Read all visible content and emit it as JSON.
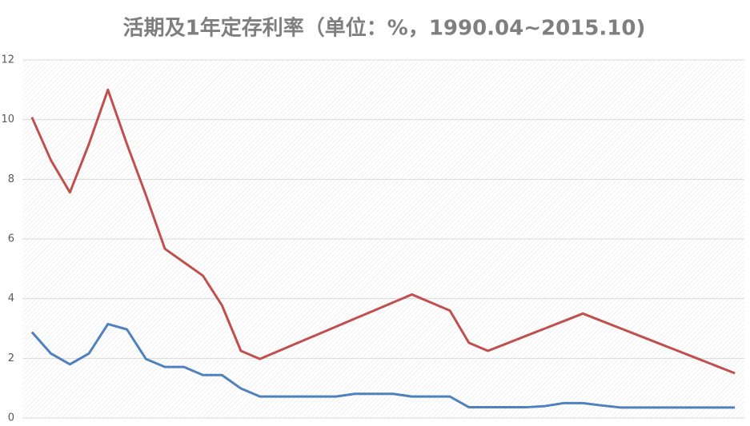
{
  "chart_data": {
    "type": "line",
    "title": "活期及1年定存利率（单位：%，1990.04~2015.10)",
    "categories": [
      null,
      null,
      null,
      null,
      null,
      null,
      null,
      null,
      null,
      null,
      null,
      null,
      null,
      null,
      null,
      null,
      null,
      null,
      null,
      null,
      null,
      null,
      null,
      null,
      null,
      null,
      null,
      null,
      null,
      null,
      null,
      null,
      null,
      null,
      null,
      null,
      null,
      null
    ],
    "series": [
      {
        "color": "#c0504d",
        "values": [
          10.08,
          8.64,
          7.56,
          9.18,
          11.0,
          9.18,
          7.47,
          5.67,
          5.22,
          4.77,
          3.78,
          2.25,
          1.98,
          2.25,
          2.52,
          2.79,
          3.06,
          3.33,
          3.6,
          3.87,
          4.14,
          3.87,
          3.6,
          2.52,
          2.25,
          2.5,
          2.75,
          3.0,
          3.25,
          3.5,
          3.25,
          3.0,
          2.75,
          2.5,
          2.25,
          2.0,
          1.75,
          1.5
        ]
      },
      {
        "color": "#4f81bd",
        "values": [
          2.88,
          2.16,
          1.8,
          2.16,
          3.15,
          2.97,
          1.98,
          1.71,
          1.71,
          1.44,
          1.44,
          0.99,
          0.72,
          0.72,
          0.72,
          0.72,
          0.72,
          0.81,
          0.81,
          0.81,
          0.72,
          0.72,
          0.72,
          0.36,
          0.36,
          0.36,
          0.36,
          0.4,
          0.5,
          0.5,
          0.42,
          0.35,
          0.35,
          0.35,
          0.35,
          0.35,
          0.35,
          0.35
        ]
      }
    ],
    "ylim": [
      0,
      12
    ],
    "yticks": [
      0,
      2,
      4,
      6,
      8,
      10,
      12
    ],
    "grid": true
  }
}
